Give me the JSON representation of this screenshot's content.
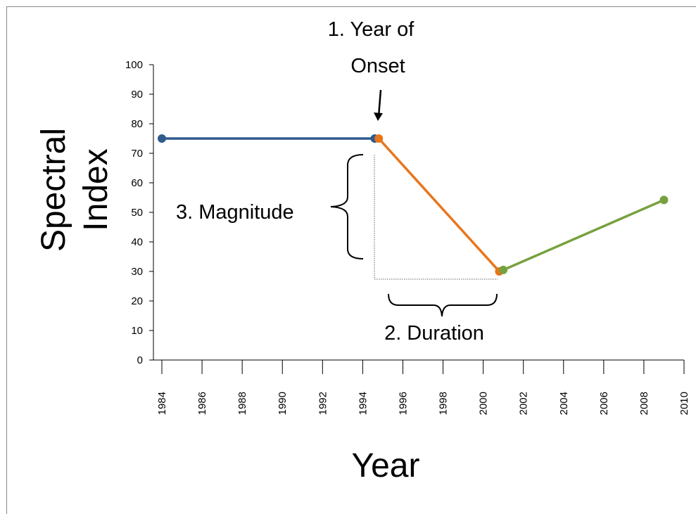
{
  "chart_data": {
    "type": "line",
    "ylabel_lines": [
      "Spectral",
      "Index"
    ],
    "xlabel": "Year",
    "annotations": {
      "onset_lines": [
        "1.  Year of",
        "Onset"
      ],
      "magnitude": "3. Magnitude",
      "duration": "2. Duration"
    },
    "series": [
      {
        "color": "#2e5a8c",
        "x": [
          1984,
          1994.6
        ],
        "values": [
          75,
          75
        ]
      },
      {
        "color": "#e8751a",
        "x": [
          1994.8,
          2000.8
        ],
        "values": [
          75,
          30
        ]
      },
      {
        "color": "#77a13f",
        "x": [
          2001,
          2009
        ],
        "values": [
          30.5,
          54.2
        ]
      }
    ],
    "xlim": [
      1984,
      2010
    ],
    "xticks": [
      1984,
      1986,
      1988,
      1990,
      1992,
      1994,
      1996,
      1998,
      2000,
      2002,
      2004,
      2006,
      2008,
      2010
    ],
    "ylim": [
      0,
      100
    ],
    "yticks": [
      0,
      10,
      20,
      30,
      40,
      50,
      60,
      70,
      80,
      90,
      100
    ]
  }
}
